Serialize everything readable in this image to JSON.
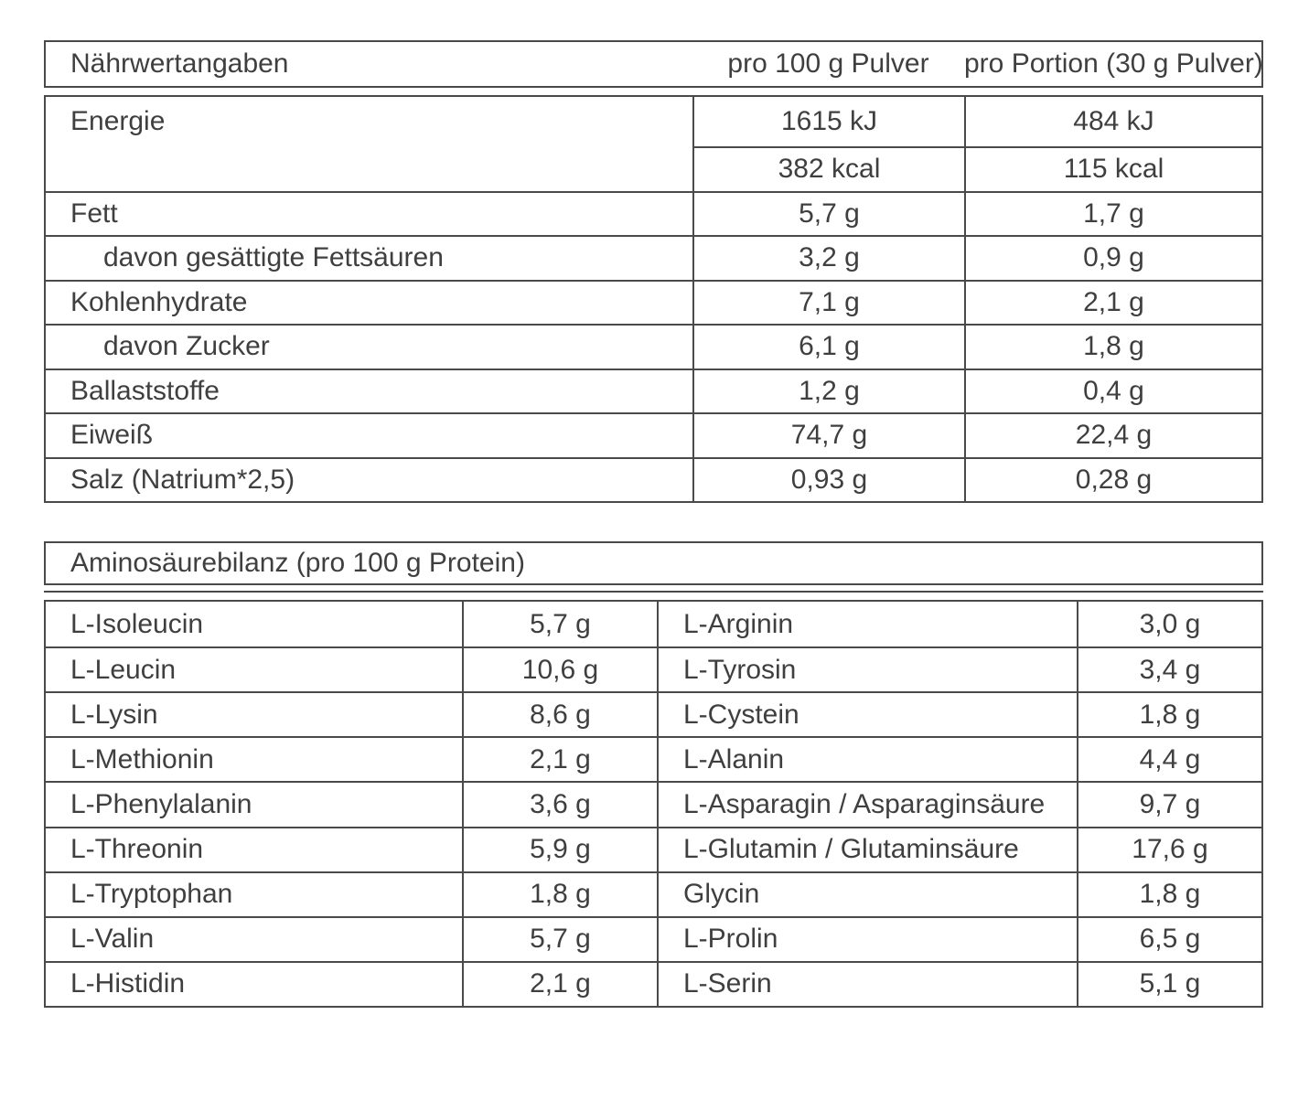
{
  "colors": {
    "text": "#3f3f3f",
    "border": "#4a4a4a",
    "background": "#ffffff"
  },
  "nutrition_table": {
    "title": "Nährwertangaben",
    "col1_header": "pro 100 g Pulver",
    "col2_header": "pro Portion (30 g Pulver)",
    "energy": {
      "label": "Energie",
      "rows": [
        {
          "per100": "1615 kJ",
          "portion": "484 kJ"
        },
        {
          "per100": "382 kcal",
          "portion": "115 kcal"
        }
      ]
    },
    "rows": [
      {
        "label": "Fett",
        "per100": "5,7 g",
        "portion": "1,7 g",
        "indent": false
      },
      {
        "label": "davon gesättigte Fettsäuren",
        "per100": "3,2 g",
        "portion": "0,9 g",
        "indent": true
      },
      {
        "label": "Kohlenhydrate",
        "per100": "7,1 g",
        "portion": "2,1 g",
        "indent": false
      },
      {
        "label": "davon Zucker",
        "per100": "6,1 g",
        "portion": "1,8 g",
        "indent": true
      },
      {
        "label": "Ballaststoffe",
        "per100": "1,2 g",
        "portion": "0,4 g",
        "indent": false
      },
      {
        "label": "Eiweiß",
        "per100": "74,7 g",
        "portion": "22,4 g",
        "indent": false
      },
      {
        "label": "Salz (Natrium*2,5)",
        "per100": "0,93 g",
        "portion": "0,28 g",
        "indent": false
      }
    ]
  },
  "amino_table": {
    "title": "Aminosäurebilanz (pro 100 g Protein)",
    "rows": [
      {
        "left_label": "L-Isoleucin",
        "left_value": "5,7 g",
        "right_label": "L-Arginin",
        "right_value": "3,0 g"
      },
      {
        "left_label": "L-Leucin",
        "left_value": "10,6 g",
        "right_label": "L-Tyrosin",
        "right_value": "3,4 g"
      },
      {
        "left_label": "L-Lysin",
        "left_value": "8,6 g",
        "right_label": "L-Cystein",
        "right_value": "1,8 g"
      },
      {
        "left_label": "L-Methionin",
        "left_value": "2,1 g",
        "right_label": "L-Alanin",
        "right_value": "4,4 g"
      },
      {
        "left_label": "L-Phenylalanin",
        "left_value": "3,6 g",
        "right_label": "L-Asparagin / Asparaginsäure",
        "right_value": "9,7 g"
      },
      {
        "left_label": "L-Threonin",
        "left_value": "5,9 g",
        "right_label": "L-Glutamin / Glutaminsäure",
        "right_value": "17,6 g"
      },
      {
        "left_label": "L-Tryptophan",
        "left_value": "1,8 g",
        "right_label": "Glycin",
        "right_value": "1,8 g"
      },
      {
        "left_label": "L-Valin",
        "left_value": "5,7 g",
        "right_label": "L-Prolin",
        "right_value": "6,5 g"
      },
      {
        "left_label": "L-Histidin",
        "left_value": "2,1 g",
        "right_label": "L-Serin",
        "right_value": "5,1 g"
      }
    ]
  }
}
